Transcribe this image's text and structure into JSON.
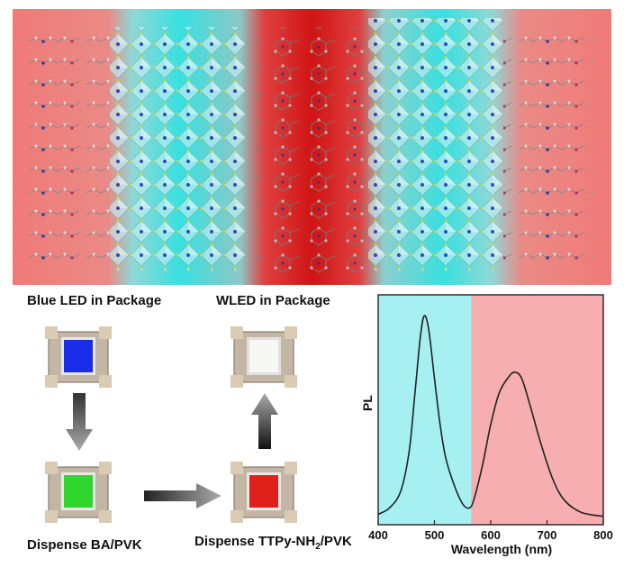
{
  "figure": {
    "top_panel": {
      "description_name": "perovskite-layered-structure"
    },
    "labels": {
      "blue_led": "Blue LED in Package",
      "wled": "WLED in Package",
      "dispense_ba": "Dispense BA/PVK",
      "dispense_ttpy_prefix": "Dispense TTPy-NH",
      "dispense_ttpy_sub": "2",
      "dispense_ttpy_suffix": "/PVK"
    },
    "led_colors": {
      "blue": "#1a2de8",
      "green": "#2ed62e",
      "red": "#e0201a",
      "white": "#f7f7f4"
    }
  },
  "chart_data": {
    "type": "line",
    "title": "",
    "xlabel": "Wavelength (nm)",
    "ylabel": "PL",
    "xlim": [
      400,
      800
    ],
    "ylim": [
      0,
      1.1
    ],
    "xticks": [
      "400",
      "500",
      "600",
      "700",
      "800"
    ],
    "regions": [
      {
        "from": 400,
        "to": 565,
        "color": "#a6f0f2"
      },
      {
        "from": 565,
        "to": 800,
        "color": "#f7aeb0"
      }
    ],
    "series": [
      {
        "name": "PL",
        "x": [
          400,
          420,
          440,
          455,
          465,
          475,
          482,
          490,
          500,
          510,
          520,
          535,
          550,
          562,
          570,
          585,
          600,
          615,
          630,
          642,
          655,
          670,
          690,
          710,
          730,
          760,
          800
        ],
        "y": [
          0.05,
          0.08,
          0.16,
          0.35,
          0.62,
          0.9,
          1.0,
          0.93,
          0.7,
          0.48,
          0.32,
          0.19,
          0.1,
          0.08,
          0.12,
          0.28,
          0.48,
          0.63,
          0.7,
          0.73,
          0.7,
          0.57,
          0.38,
          0.22,
          0.12,
          0.06,
          0.04
        ]
      }
    ]
  }
}
